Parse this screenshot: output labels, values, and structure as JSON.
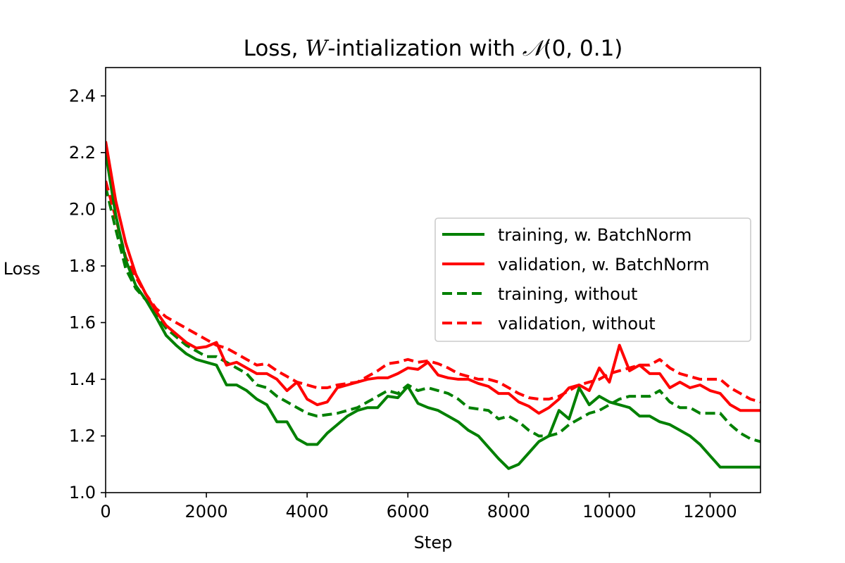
{
  "chart_data": {
    "type": "line",
    "title": {
      "prefix": "Loss,  ",
      "italic_var": "W",
      "middle": "-intialization with ",
      "script_symbol": "𝒩",
      "suffix": "(0, 0.1)"
    },
    "xlabel": "Step",
    "ylabel": "Loss",
    "xlim": [
      0,
      13000
    ],
    "ylim": [
      1.0,
      2.5
    ],
    "xticks": [
      0,
      2000,
      4000,
      6000,
      8000,
      10000,
      12000
    ],
    "xtick_labels": [
      "0",
      "2000",
      "4000",
      "6000",
      "8000",
      "10000",
      "12000"
    ],
    "yticks": [
      1.0,
      1.2,
      1.4,
      1.6,
      1.8,
      2.0,
      2.2,
      2.4
    ],
    "ytick_labels": [
      "1.0",
      "1.2",
      "1.4",
      "1.6",
      "1.8",
      "2.0",
      "2.2",
      "2.4"
    ],
    "grid": false,
    "legend_position": "center-right",
    "series": [
      {
        "name": "training, w. BatchNorm",
        "color": "#008000",
        "style": "solid",
        "x": [
          0,
          200,
          400,
          600,
          800,
          1000,
          1200,
          1400,
          1600,
          1800,
          2000,
          2200,
          2400,
          2600,
          2800,
          3000,
          3200,
          3400,
          3600,
          3800,
          4000,
          4200,
          4400,
          4600,
          4800,
          5000,
          5200,
          5400,
          5600,
          5800,
          6000,
          6200,
          6400,
          6600,
          6800,
          7000,
          7200,
          7400,
          7600,
          7800,
          8000,
          8200,
          8400,
          8600,
          8800,
          9000,
          9200,
          9400,
          9600,
          9800,
          10000,
          10200,
          10400,
          10600,
          10800,
          11000,
          11200,
          11400,
          11600,
          11800,
          12000,
          12200,
          12400,
          12600,
          12800,
          13000
        ],
        "y": [
          2.2,
          1.98,
          1.82,
          1.73,
          1.68,
          1.62,
          1.555,
          1.52,
          1.49,
          1.47,
          1.46,
          1.45,
          1.38,
          1.38,
          1.36,
          1.33,
          1.31,
          1.25,
          1.25,
          1.19,
          1.17,
          1.17,
          1.21,
          1.24,
          1.27,
          1.29,
          1.3,
          1.3,
          1.34,
          1.335,
          1.375,
          1.315,
          1.3,
          1.29,
          1.27,
          1.25,
          1.22,
          1.2,
          1.16,
          1.12,
          1.085,
          1.1,
          1.14,
          1.18,
          1.2,
          1.29,
          1.26,
          1.37,
          1.31,
          1.34,
          1.32,
          1.31,
          1.3,
          1.27,
          1.27,
          1.25,
          1.24,
          1.22,
          1.2,
          1.17,
          1.13,
          1.09,
          1.09,
          1.09,
          1.09,
          1.09
        ]
      },
      {
        "name": "validation, w. BatchNorm",
        "color": "#ff0000",
        "style": "solid",
        "x": [
          0,
          200,
          400,
          600,
          800,
          1000,
          1200,
          1400,
          1600,
          1800,
          2000,
          2200,
          2400,
          2600,
          2800,
          3000,
          3200,
          3400,
          3600,
          3800,
          4000,
          4200,
          4400,
          4600,
          4800,
          5000,
          5200,
          5400,
          5600,
          5800,
          6000,
          6200,
          6400,
          6600,
          6800,
          7000,
          7200,
          7400,
          7600,
          7800,
          8000,
          8200,
          8400,
          8600,
          8800,
          9000,
          9200,
          9400,
          9600,
          9800,
          10000,
          10200,
          10400,
          10600,
          10800,
          11000,
          11200,
          11400,
          11600,
          11800,
          12000,
          12200,
          12400,
          12600,
          12800,
          13000
        ],
        "y": [
          2.24,
          2.03,
          1.88,
          1.77,
          1.7,
          1.64,
          1.59,
          1.56,
          1.53,
          1.51,
          1.515,
          1.53,
          1.45,
          1.46,
          1.44,
          1.42,
          1.42,
          1.4,
          1.36,
          1.39,
          1.33,
          1.31,
          1.32,
          1.37,
          1.38,
          1.39,
          1.4,
          1.405,
          1.405,
          1.42,
          1.44,
          1.435,
          1.46,
          1.415,
          1.405,
          1.4,
          1.4,
          1.385,
          1.375,
          1.35,
          1.35,
          1.32,
          1.305,
          1.28,
          1.3,
          1.33,
          1.37,
          1.38,
          1.36,
          1.44,
          1.39,
          1.52,
          1.43,
          1.45,
          1.42,
          1.42,
          1.37,
          1.39,
          1.37,
          1.38,
          1.36,
          1.35,
          1.31,
          1.29,
          1.29,
          1.29
        ]
      },
      {
        "name": "training, without",
        "color": "#008000",
        "style": "dashed",
        "x": [
          0,
          200,
          400,
          600,
          800,
          1000,
          1200,
          1400,
          1600,
          1800,
          2000,
          2200,
          2400,
          2600,
          2800,
          3000,
          3200,
          3400,
          3600,
          3800,
          4000,
          4200,
          4400,
          4600,
          4800,
          5000,
          5200,
          5400,
          5600,
          5800,
          6000,
          6200,
          6400,
          6600,
          6800,
          7000,
          7200,
          7400,
          7600,
          7800,
          8000,
          8200,
          8400,
          8600,
          8800,
          9000,
          9200,
          9400,
          9600,
          9800,
          10000,
          10200,
          10400,
          10600,
          10800,
          11000,
          11200,
          11400,
          11600,
          11800,
          12000,
          12200,
          12400,
          12600,
          12800,
          13000
        ],
        "y": [
          2.08,
          1.93,
          1.79,
          1.72,
          1.68,
          1.63,
          1.58,
          1.55,
          1.52,
          1.5,
          1.48,
          1.48,
          1.46,
          1.44,
          1.42,
          1.38,
          1.37,
          1.34,
          1.32,
          1.3,
          1.28,
          1.27,
          1.275,
          1.28,
          1.29,
          1.3,
          1.32,
          1.34,
          1.36,
          1.35,
          1.38,
          1.36,
          1.37,
          1.36,
          1.35,
          1.33,
          1.3,
          1.295,
          1.29,
          1.26,
          1.27,
          1.25,
          1.22,
          1.2,
          1.2,
          1.21,
          1.24,
          1.26,
          1.28,
          1.29,
          1.31,
          1.33,
          1.34,
          1.34,
          1.34,
          1.36,
          1.32,
          1.3,
          1.3,
          1.28,
          1.28,
          1.28,
          1.24,
          1.21,
          1.19,
          1.18
        ]
      },
      {
        "name": "validation, without",
        "color": "#ff0000",
        "style": "dashed",
        "x": [
          0,
          200,
          400,
          600,
          800,
          1000,
          1200,
          1400,
          1600,
          1800,
          2000,
          2200,
          2400,
          2600,
          2800,
          3000,
          3200,
          3400,
          3600,
          3800,
          4000,
          4200,
          4400,
          4600,
          4800,
          5000,
          5200,
          5400,
          5600,
          5800,
          6000,
          6200,
          6400,
          6600,
          6800,
          7000,
          7200,
          7400,
          7600,
          7800,
          8000,
          8200,
          8400,
          8600,
          8800,
          9000,
          9200,
          9400,
          9600,
          9800,
          10000,
          10200,
          10400,
          10600,
          10800,
          11000,
          11200,
          11400,
          11600,
          11800,
          12000,
          12200,
          12400,
          12600,
          12800,
          13000
        ],
        "y": [
          2.1,
          1.97,
          1.83,
          1.76,
          1.7,
          1.65,
          1.62,
          1.6,
          1.58,
          1.56,
          1.54,
          1.52,
          1.51,
          1.49,
          1.47,
          1.45,
          1.455,
          1.43,
          1.41,
          1.39,
          1.38,
          1.37,
          1.37,
          1.38,
          1.385,
          1.39,
          1.41,
          1.43,
          1.455,
          1.46,
          1.47,
          1.46,
          1.465,
          1.455,
          1.44,
          1.42,
          1.41,
          1.4,
          1.4,
          1.39,
          1.37,
          1.35,
          1.335,
          1.33,
          1.33,
          1.34,
          1.36,
          1.38,
          1.39,
          1.4,
          1.42,
          1.43,
          1.44,
          1.45,
          1.45,
          1.47,
          1.44,
          1.42,
          1.41,
          1.4,
          1.4,
          1.4,
          1.37,
          1.35,
          1.33,
          1.32
        ]
      }
    ]
  }
}
